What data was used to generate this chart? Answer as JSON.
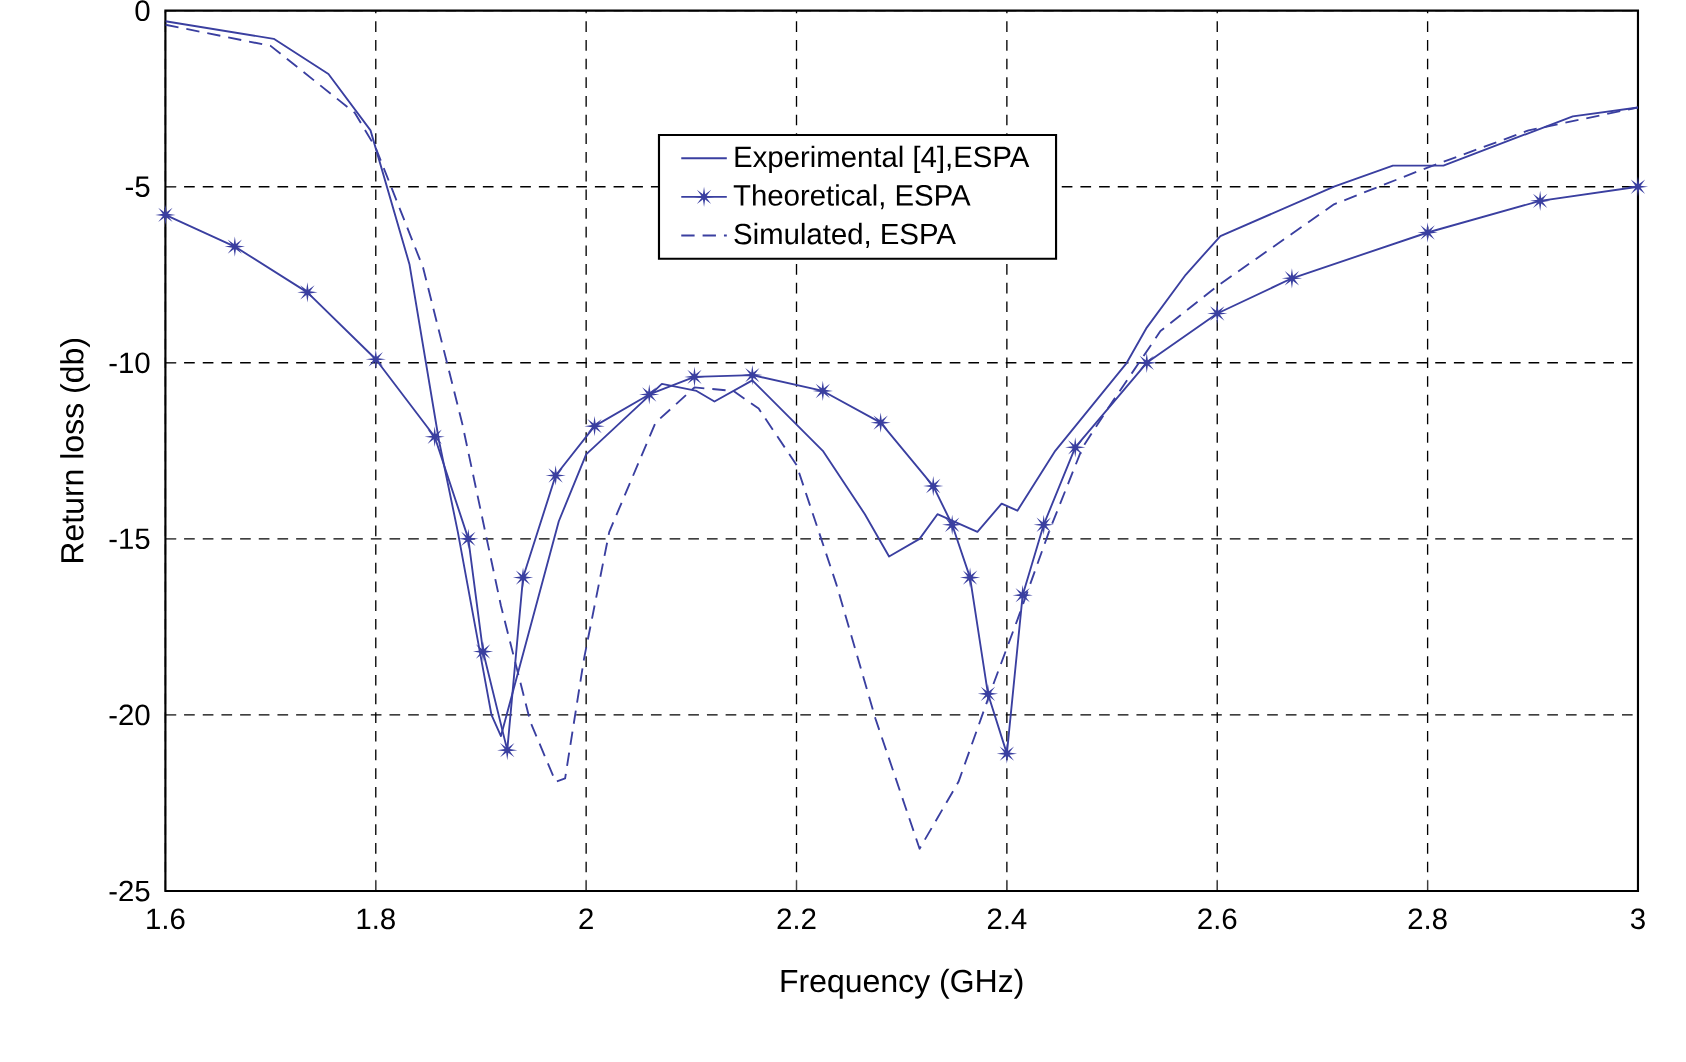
{
  "chart_data": {
    "type": "line",
    "xlabel": "Frequency (GHz)",
    "ylabel": "Return loss (db)",
    "xlim": [
      1.6,
      3
    ],
    "ylim": [
      -25,
      0
    ],
    "xticks": [
      1.6,
      1.8,
      2,
      2.2,
      2.4,
      2.6,
      2.8,
      3
    ],
    "yticks": [
      -25,
      -20,
      -15,
      -10,
      -5,
      0
    ],
    "grid": true,
    "legend": "top",
    "series": [
      {
        "name": "Experimental [4],ESPA",
        "color": "#3a3fa0",
        "marker": "none",
        "line_style": "solid",
        "x": [
          1.6,
          1.703,
          1.755,
          1.795,
          1.832,
          1.86,
          1.878,
          1.91,
          1.919,
          1.974,
          2.0,
          2.072,
          2.105,
          2.122,
          2.158,
          2.225,
          2.265,
          2.288,
          2.317,
          2.334,
          2.372,
          2.395,
          2.41,
          2.446,
          2.514,
          2.533,
          2.57,
          2.603,
          2.711,
          2.767,
          2.815,
          2.938,
          3.0
        ],
        "values": [
          -0.3,
          -0.8,
          -1.8,
          -3.4,
          -7.2,
          -12.2,
          -14.8,
          -20,
          -20.6,
          -14.5,
          -12.6,
          -10.6,
          -10.8,
          -11.1,
          -10.5,
          -12.5,
          -14.3,
          -15.5,
          -15.0,
          -14.3,
          -14.8,
          -14.0,
          -14.2,
          -12.5,
          -10.0,
          -9.0,
          -7.5,
          -6.4,
          -5.0,
          -4.4,
          -4.4,
          -3.0,
          -2.75
        ]
      },
      {
        "name": "Theoretical, ESPA",
        "color": "#3a3fa0",
        "marker": "star",
        "line_style": "solid",
        "x": [
          1.6,
          1.666,
          1.735,
          1.8,
          1.856,
          1.888,
          1.902,
          1.925,
          1.94,
          1.971,
          2.008,
          2.06,
          2.103,
          2.158,
          2.225,
          2.28,
          2.33,
          2.348,
          2.365,
          2.382,
          2.4,
          2.415,
          2.435,
          2.465,
          2.533,
          2.6,
          2.671,
          2.8,
          2.907,
          3.0
        ],
        "values": [
          -5.8,
          -6.7,
          -8.0,
          -9.9,
          -12.1,
          -15.0,
          -18.2,
          -21.0,
          -16.1,
          -13.2,
          -11.8,
          -10.9,
          -10.4,
          -10.35,
          -10.8,
          -11.7,
          -13.5,
          -14.6,
          -16.1,
          -19.4,
          -21.1,
          -16.6,
          -14.6,
          -12.4,
          -10.0,
          -8.6,
          -7.6,
          -6.3,
          -5.4,
          -5.0
        ]
      },
      {
        "name": "Simulated, ESPA",
        "color": "#3a3fa0",
        "marker": "none",
        "line_style": "dashed",
        "x": [
          1.6,
          1.7,
          1.78,
          1.8,
          1.845,
          1.882,
          1.919,
          1.947,
          1.971,
          1.98,
          1.998,
          2.022,
          2.066,
          2.103,
          2.14,
          2.164,
          2.2,
          2.238,
          2.275,
          2.317,
          2.354,
          2.385,
          2.41,
          2.44,
          2.472,
          2.496,
          2.546,
          2.601,
          2.711,
          2.796,
          2.896,
          3.0
        ],
        "values": [
          -0.4,
          -1.0,
          -2.9,
          -3.9,
          -7.3,
          -11.7,
          -16.9,
          -20.2,
          -21.9,
          -21.8,
          -18.4,
          -14.8,
          -11.7,
          -10.7,
          -10.8,
          -11.3,
          -12.9,
          -16.3,
          -20.1,
          -23.8,
          -21.9,
          -19.3,
          -17.3,
          -14.8,
          -12.4,
          -11.3,
          -9.1,
          -7.8,
          -5.5,
          -4.5,
          -3.4,
          -2.75
        ]
      }
    ]
  }
}
